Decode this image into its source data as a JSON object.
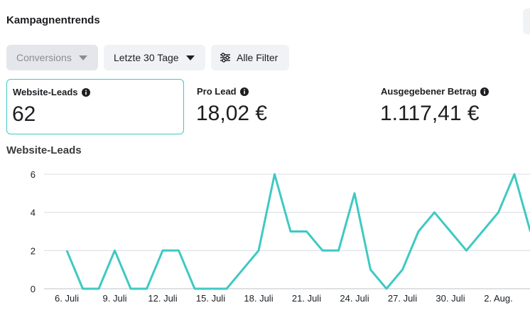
{
  "header": {
    "title": "Kampagnentrends"
  },
  "toolbar": {
    "metric_select": "Conversions",
    "date_range": "Letzte 30 Tage",
    "filters": "Alle Filter"
  },
  "metrics": [
    {
      "label": "Website-Leads",
      "value": "62"
    },
    {
      "label": "Pro Lead",
      "value": "18,02 €"
    },
    {
      "label": "Ausgegebener Betrag",
      "value": "1.117,41 €"
    }
  ],
  "chart": {
    "title": "Website-Leads"
  },
  "colors": {
    "line": "#3ec9c3",
    "selected_border": "#3ec9c3",
    "grid": "#dadde1"
  },
  "chart_data": {
    "type": "line",
    "title": "Website-Leads",
    "x": [
      "6. Juli",
      "7. Juli",
      "8. Juli",
      "9. Juli",
      "10. Juli",
      "11. Juli",
      "12. Juli",
      "13. Juli",
      "14. Juli",
      "15. Juli",
      "16. Juli",
      "17. Juli",
      "18. Juli",
      "19. Juli",
      "20. Juli",
      "21. Juli",
      "22. Juli",
      "23. Juli",
      "24. Juli",
      "25. Juli",
      "26. Juli",
      "27. Juli",
      "28. Juli",
      "29. Juli",
      "30. Juli",
      "31. Juli",
      "1. Aug.",
      "2. Aug.",
      "3. Aug.",
      "4. Aug."
    ],
    "series": [
      {
        "values": [
          2,
          0,
          0,
          2,
          0,
          0,
          2,
          2,
          0,
          0,
          0,
          1,
          2,
          6,
          3,
          3,
          2,
          2,
          5,
          1,
          0,
          1,
          3,
          4,
          3,
          2,
          3,
          4,
          6,
          3
        ]
      }
    ],
    "xticks": [
      "6. Juli",
      "9. Juli",
      "12. Juli",
      "15. Juli",
      "18. Juli",
      "21. Juli",
      "24. Juli",
      "27. Juli",
      "30. Juli",
      "2. Aug."
    ],
    "yticks": [
      "0",
      "2",
      "4",
      "6"
    ],
    "ylim": [
      0,
      6
    ],
    "grid": true
  }
}
